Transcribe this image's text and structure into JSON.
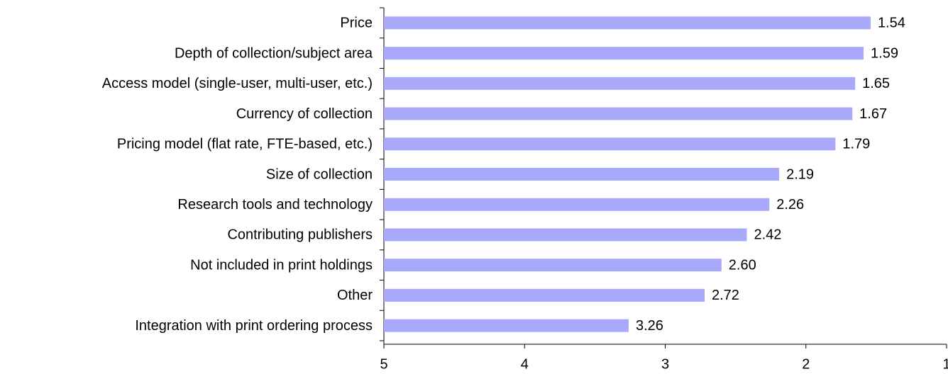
{
  "chart_data": {
    "type": "bar",
    "orientation": "horizontal",
    "categories": [
      "Price",
      "Depth of collection/subject area",
      "Access model (single-user, multi-user, etc.)",
      "Currency of collection",
      "Pricing model (flat rate, FTE-based, etc.)",
      "Size of collection",
      "Research tools and technology",
      "Contributing publishers",
      "Not included in print holdings",
      "Other",
      "Integration with print ordering process"
    ],
    "values": [
      1.54,
      1.59,
      1.65,
      1.67,
      1.79,
      2.19,
      2.26,
      2.42,
      2.6,
      2.72,
      3.26
    ],
    "value_labels": [
      "1.54",
      "1.59",
      "1.65",
      "1.67",
      "1.79",
      "2.19",
      "2.26",
      "2.42",
      "2.60",
      "2.72",
      "3.26"
    ],
    "color": "#a9a9fc",
    "xlim": [
      5,
      1
    ],
    "xticks": [
      5,
      4,
      3,
      2,
      1
    ],
    "grid": false
  }
}
